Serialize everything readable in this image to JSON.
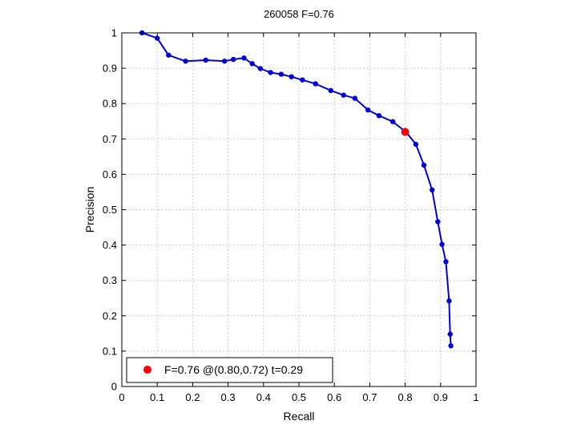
{
  "chart_data": {
    "type": "line",
    "title": "260058 F=0.76",
    "xlabel": "Recall",
    "ylabel": "Precision",
    "xlim": [
      0,
      1
    ],
    "ylim": [
      0,
      1
    ],
    "grid": true,
    "x_ticks": [
      "0",
      "0.1",
      "0.2",
      "0.3",
      "0.4",
      "0.5",
      "0.6",
      "0.7",
      "0.8",
      "0.9",
      "1"
    ],
    "y_ticks": [
      "0",
      "0.1",
      "0.2",
      "0.3",
      "0.4",
      "0.5",
      "0.6",
      "0.7",
      "0.8",
      "0.9",
      "1"
    ],
    "colors": {
      "curve": "#0000dd",
      "highlight": "#ff0000",
      "axes": "#000000",
      "grid": "#bdbdbd"
    },
    "series": [
      {
        "x": [
          0.057,
          0.1,
          0.132,
          0.18,
          0.237,
          0.29,
          0.315,
          0.345,
          0.368,
          0.391,
          0.42,
          0.45,
          0.479,
          0.51,
          0.547,
          0.59,
          0.626,
          0.658,
          0.695,
          0.726,
          0.765,
          0.803,
          0.83,
          0.853,
          0.876,
          0.892,
          0.904,
          0.915,
          0.924,
          0.927,
          0.929
        ],
        "y": [
          1.0,
          0.985,
          0.937,
          0.92,
          0.923,
          0.92,
          0.925,
          0.929,
          0.913,
          0.899,
          0.888,
          0.883,
          0.876,
          0.867,
          0.856,
          0.837,
          0.824,
          0.815,
          0.782,
          0.766,
          0.749,
          0.719,
          0.685,
          0.626,
          0.556,
          0.466,
          0.402,
          0.353,
          0.242,
          0.148,
          0.115
        ]
      }
    ],
    "highlight_point": {
      "x": 0.8,
      "y": 0.72
    },
    "legend": {
      "position": "bottom-left",
      "label": "F=0.76 @(0.80,0.72) t=0.29"
    }
  }
}
